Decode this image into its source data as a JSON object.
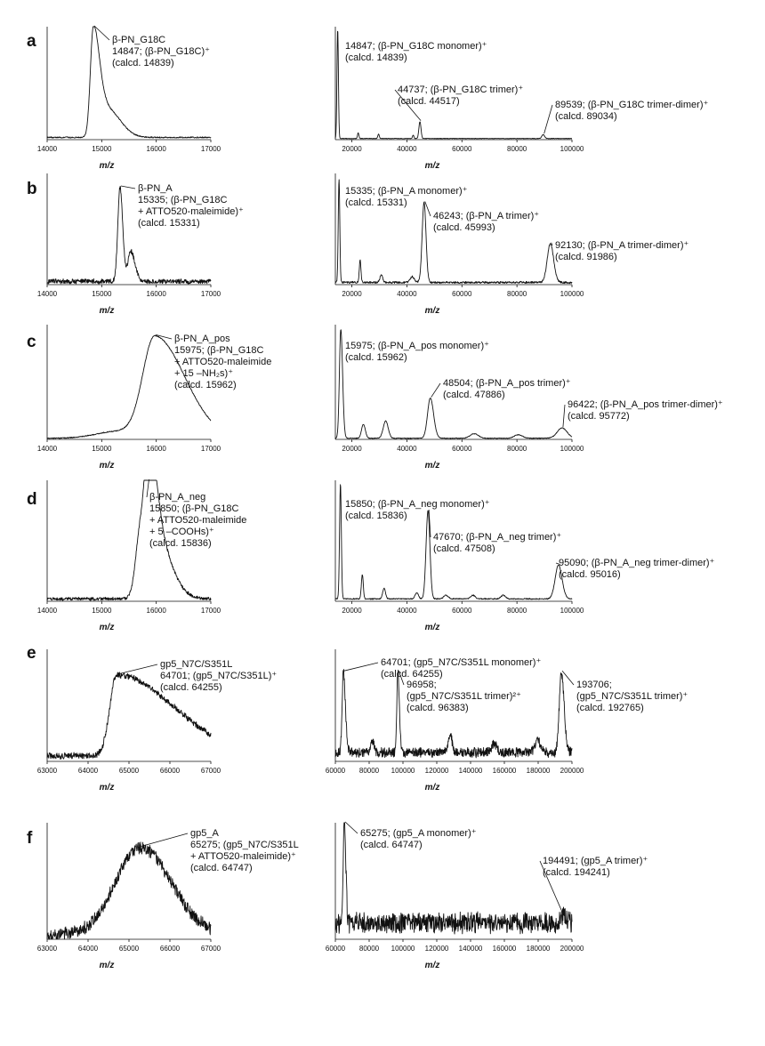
{
  "figure": {
    "panels": [
      {
        "letter": "a",
        "zoom_annotation": [
          "β-PN_G18C",
          "14847; (β-PN_G18C)⁺",
          "(calcd. 14839)"
        ],
        "full_annotations": [
          [
            "14847; (β-PN_G18C monomer)⁺",
            "(calcd. 14839)"
          ],
          [
            "44737; (β-PN_G18C trimer)⁺",
            "(calcd. 44517)"
          ],
          [
            "89539; (β-PN_G18C trimer-dimer)⁺",
            "(calcd. 89034)"
          ]
        ]
      },
      {
        "letter": "b",
        "zoom_annotation": [
          "β-PN_A",
          "15335; (β-PN_G18C",
          "+ ATTO520-maleimide)⁺",
          "(calcd. 15331)"
        ],
        "full_annotations": [
          [
            "15335; (β-PN_A monomer)⁺",
            "(calcd. 15331)"
          ],
          [
            "46243; (β-PN_A trimer)⁺",
            "(calcd. 45993)"
          ],
          [
            "92130; (β-PN_A trimer-dimer)⁺",
            "(calcd. 91986)"
          ]
        ]
      },
      {
        "letter": "c",
        "zoom_annotation": [
          "β-PN_A_pos",
          "15975; (β-PN_G18C",
          "+ ATTO520-maleimide",
          "+ 15 –NH₂s)⁺",
          "(calcd. 15962)"
        ],
        "full_annotations": [
          [
            "15975; (β-PN_A_pos monomer)⁺",
            "(calcd. 15962)"
          ],
          [
            "48504; (β-PN_A_pos trimer)⁺",
            "(calcd. 47886)"
          ],
          [
            "96422; (β-PN_A_pos trimer-dimer)⁺",
            "(calcd. 95772)"
          ]
        ]
      },
      {
        "letter": "d",
        "zoom_annotation": [
          "β-PN_A_neg",
          "15850; (β-PN_G18C",
          "+ ATTO520-maleimide",
          "+ 5 –COOHs)⁺",
          "(calcd. 15836)"
        ],
        "full_annotations": [
          [
            "15850; (β-PN_A_neg monomer)⁺",
            "(calcd. 15836)"
          ],
          [
            "47670; (β-PN_A_neg trimer)⁺",
            "(calcd. 47508)"
          ],
          [
            "95090; (β-PN_A_neg trimer-dimer)⁺",
            "(calcd. 95016)"
          ]
        ]
      },
      {
        "letter": "e",
        "zoom_annotation": [
          "gp5_N7C/S351L",
          "64701; (gp5_N7C/S351L)⁺",
          "(calcd. 64255)"
        ],
        "full_annotations": [
          [
            "64701; (gp5_N7C/S351L monomer)⁺",
            "(calcd. 64255)"
          ],
          [
            "96958;",
            "(gp5_N7C/S351L trimer)²⁺",
            "(calcd. 96383)"
          ],
          [
            "193706;",
            "(gp5_N7C/S351L trimer)⁺",
            "(calcd. 192765)"
          ]
        ]
      },
      {
        "letter": "f",
        "zoom_annotation": [
          "gp5_A",
          "65275; (gp5_N7C/S351L",
          "+ ATTO520-maleimide)⁺",
          "(calcd. 64747)"
        ],
        "full_annotations": [
          [
            "65275; (gp5_A monomer)⁺",
            "(calcd. 64747)"
          ],
          [
            "194491; (gp5_A trimer)⁺",
            "(calcd. 194241)"
          ]
        ]
      }
    ]
  },
  "chart_data": [
    {
      "type": "line",
      "panel": "a",
      "view": "zoom",
      "xlabel": "m/z",
      "xlim": [
        14000,
        17000
      ],
      "x_ticks": [
        14000,
        15000,
        16000,
        17000
      ],
      "y_range": [
        0,
        1
      ],
      "noise": 0.005,
      "base": 0.02,
      "peaks": [
        [
          14847,
          0.95,
          55,
          110
        ],
        [
          15100,
          0.25,
          130,
          240
        ]
      ],
      "annotated_peaks": [
        14847
      ]
    },
    {
      "type": "line",
      "panel": "a",
      "view": "full",
      "xlabel": "m/z",
      "xlim": [
        14000,
        100000
      ],
      "x_ticks": [
        20000,
        40000,
        60000,
        80000,
        100000
      ],
      "y_range": [
        0,
        1
      ],
      "noise": 0.002,
      "base": 0.01,
      "peaks": [
        [
          14847,
          0.97,
          260,
          260
        ],
        [
          22300,
          0.05,
          260,
          260
        ],
        [
          29700,
          0.04,
          260,
          260
        ],
        [
          42300,
          0.03,
          260,
          260
        ],
        [
          44737,
          0.15,
          380,
          380
        ],
        [
          89539,
          0.035,
          500,
          500
        ]
      ],
      "annotated_peaks": [
        14847,
        44737,
        89539
      ]
    },
    {
      "type": "line",
      "panel": "b",
      "view": "zoom",
      "xlabel": "m/z",
      "xlim": [
        14000,
        17000
      ],
      "x_ticks": [
        14000,
        15000,
        16000,
        17000
      ],
      "y_range": [
        0,
        1
      ],
      "noise": 0.02,
      "base": 0.03,
      "peaks": [
        [
          15335,
          0.85,
          40,
          50
        ],
        [
          15530,
          0.27,
          50,
          80
        ]
      ],
      "annotated_peaks": [
        15335
      ]
    },
    {
      "type": "line",
      "panel": "b",
      "view": "full",
      "xlabel": "m/z",
      "xlim": [
        14000,
        100000
      ],
      "x_ticks": [
        20000,
        40000,
        60000,
        80000,
        100000
      ],
      "y_range": [
        0,
        1
      ],
      "noise": 0.008,
      "base": 0.02,
      "peaks": [
        [
          15335,
          0.93,
          280,
          280
        ],
        [
          23000,
          0.2,
          300,
          300
        ],
        [
          30700,
          0.07,
          500,
          500
        ],
        [
          42000,
          0.05,
          800,
          800
        ],
        [
          46243,
          0.72,
          700,
          700
        ],
        [
          92130,
          0.35,
          1100,
          1200
        ]
      ],
      "annotated_peaks": [
        15335,
        46243,
        92130
      ]
    },
    {
      "type": "line",
      "panel": "c",
      "view": "zoom",
      "xlabel": "m/z",
      "xlim": [
        14000,
        17000
      ],
      "x_ticks": [
        14000,
        15000,
        16000,
        17000
      ],
      "y_range": [
        0,
        1
      ],
      "noise": 0.004,
      "base": 0.01,
      "peaks": [
        [
          15975,
          0.88,
          220,
          550
        ],
        [
          15300,
          0.06,
          400,
          400
        ]
      ],
      "annotated_peaks": [
        15975
      ]
    },
    {
      "type": "line",
      "panel": "c",
      "view": "full",
      "xlabel": "m/z",
      "xlim": [
        14000,
        100000
      ],
      "x_ticks": [
        20000,
        40000,
        60000,
        80000,
        100000
      ],
      "y_range": [
        0,
        1
      ],
      "noise": 0.003,
      "base": 0.01,
      "peaks": [
        [
          15975,
          0.95,
          500,
          650
        ],
        [
          24200,
          0.12,
          700,
          700
        ],
        [
          32300,
          0.15,
          900,
          900
        ],
        [
          48504,
          0.35,
          1000,
          1200
        ],
        [
          64500,
          0.04,
          1500,
          1500
        ],
        [
          80500,
          0.03,
          1500,
          1500
        ],
        [
          96422,
          0.09,
          1800,
          1800
        ]
      ],
      "annotated_peaks": [
        15975,
        48504,
        96422
      ]
    },
    {
      "type": "line",
      "panel": "d",
      "view": "zoom",
      "xlabel": "m/z",
      "xlim": [
        14000,
        17000
      ],
      "x_ticks": [
        14000,
        15000,
        16000,
        17000
      ],
      "y_range": [
        0,
        1
      ],
      "noise": 0.012,
      "base": 0.02,
      "peaks": [
        [
          15720,
          0.62,
          90,
          110
        ],
        [
          15850,
          0.8,
          60,
          140
        ],
        [
          15960,
          0.55,
          90,
          280
        ]
      ],
      "annotated_peaks": [
        15850
      ]
    },
    {
      "type": "line",
      "panel": "d",
      "view": "full",
      "xlabel": "m/z",
      "xlim": [
        14000,
        100000
      ],
      "x_ticks": [
        20000,
        40000,
        60000,
        80000,
        100000
      ],
      "y_range": [
        0,
        1
      ],
      "noise": 0.004,
      "base": 0.02,
      "peaks": [
        [
          15850,
          0.95,
          320,
          320
        ],
        [
          23800,
          0.2,
          350,
          350
        ],
        [
          31700,
          0.09,
          500,
          500
        ],
        [
          43600,
          0.05,
          600,
          600
        ],
        [
          47670,
          0.73,
          700,
          700
        ],
        [
          54200,
          0.03,
          800,
          800
        ],
        [
          64000,
          0.03,
          800,
          800
        ],
        [
          75000,
          0.03,
          800,
          800
        ],
        [
          95090,
          0.28,
          1200,
          1300
        ]
      ],
      "annotated_peaks": [
        15850,
        47670,
        95090
      ]
    },
    {
      "type": "line",
      "panel": "e",
      "view": "zoom",
      "xlabel": "m/z",
      "xlim": [
        63000,
        67000
      ],
      "x_ticks": [
        63000,
        64000,
        65000,
        66000,
        67000
      ],
      "y_range": [
        0,
        1
      ],
      "noise": 0.025,
      "base": 0.05,
      "peaks": [
        [
          64701,
          0.72,
          170,
          1400
        ]
      ],
      "annotated_peaks": [
        64701
      ]
    },
    {
      "type": "line",
      "panel": "e",
      "view": "full",
      "xlabel": "m/z",
      "xlim": [
        60000,
        200000
      ],
      "x_ticks": [
        60000,
        80000,
        100000,
        120000,
        140000,
        160000,
        180000,
        200000
      ],
      "y_range": [
        0,
        1
      ],
      "noise": 0.04,
      "base": 0.08,
      "peaks": [
        [
          64701,
          0.72,
          700,
          1200
        ],
        [
          82000,
          0.1,
          1000,
          1000
        ],
        [
          96958,
          0.72,
          600,
          900
        ],
        [
          128000,
          0.16,
          1200,
          1200
        ],
        [
          154000,
          0.08,
          1400,
          1400
        ],
        [
          180000,
          0.1,
          1800,
          1800
        ],
        [
          193706,
          0.72,
          1200,
          1600
        ]
      ],
      "annotated_peaks": [
        64701,
        96958,
        193706
      ]
    },
    {
      "type": "line",
      "panel": "f",
      "view": "zoom",
      "xlabel": "m/z",
      "xlim": [
        63000,
        67000
      ],
      "x_ticks": [
        63000,
        64000,
        65000,
        66000,
        67000
      ],
      "y_range": [
        0,
        1
      ],
      "noise": 0.05,
      "base": 0.04,
      "peaks": [
        [
          65275,
          0.75,
          600,
          750
        ]
      ],
      "annotated_peaks": [
        65275
      ]
    },
    {
      "type": "line",
      "panel": "f",
      "view": "full",
      "xlabel": "m/z",
      "xlim": [
        60000,
        200000
      ],
      "x_ticks": [
        60000,
        80000,
        100000,
        120000,
        140000,
        160000,
        180000,
        200000
      ],
      "y_range": [
        0,
        1
      ],
      "noise": 0.08,
      "base": 0.14,
      "peaks": [
        [
          65275,
          0.92,
          600,
          900
        ],
        [
          194491,
          0.06,
          1500,
          1500
        ]
      ],
      "annotated_peaks": [
        65275,
        194491
      ]
    }
  ]
}
